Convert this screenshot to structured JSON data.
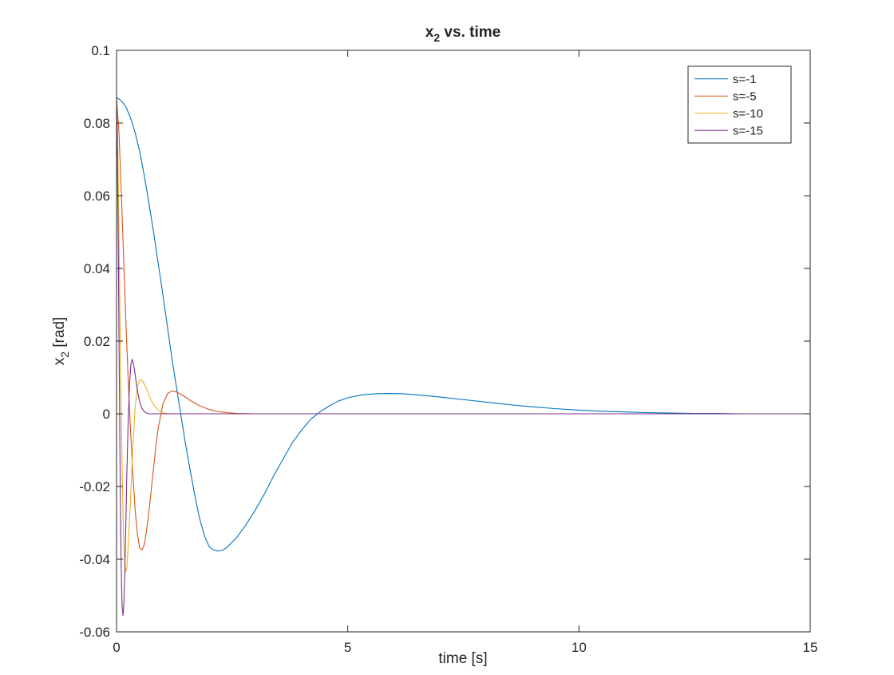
{
  "chart_data": {
    "type": "line",
    "title": "x",
    "title_subscript": "2",
    "title_suffix": " vs. time",
    "xlabel": "time [s]",
    "ylabel": "x",
    "ylabel_subscript": "2",
    "ylabel_suffix": " [rad]",
    "xlim": [
      0,
      15
    ],
    "ylim": [
      -0.06,
      0.1
    ],
    "xticks": [
      0,
      5,
      10,
      15
    ],
    "xtick_labels": [
      "0",
      "5",
      "10",
      "15"
    ],
    "yticks": [
      -0.06,
      -0.04,
      -0.02,
      0,
      0.02,
      0.04,
      0.06,
      0.08,
      0.1
    ],
    "ytick_labels": [
      "-0.06",
      "-0.04",
      "-0.02",
      "0",
      "0.02",
      "0.04",
      "0.06",
      "0.08",
      "0.1"
    ],
    "grid": false,
    "legend_position": "top-right",
    "series": [
      {
        "name": "s=-1",
        "color": "#0072BD",
        "x": [
          0,
          0.1,
          0.2,
          0.3,
          0.4,
          0.5,
          0.6,
          0.7,
          0.8,
          0.9,
          1.0,
          1.1,
          1.2,
          1.3,
          1.4,
          1.5,
          1.6,
          1.7,
          1.8,
          1.9,
          2.0,
          2.1,
          2.2,
          2.3,
          2.4,
          2.6,
          2.8,
          3.0,
          3.2,
          3.4,
          3.6,
          3.8,
          4.0,
          4.2,
          4.4,
          4.6,
          4.8,
          5.0,
          5.3,
          5.6,
          5.9,
          6.2,
          6.5,
          7.0,
          7.5,
          8.0,
          8.5,
          9.0,
          9.5,
          10.0,
          10.5,
          11.0,
          11.5,
          12.0,
          12.5,
          13.0,
          13.5,
          14.0,
          14.5,
          15.0
        ],
        "y": [
          0.087,
          0.0862,
          0.0845,
          0.0815,
          0.0775,
          0.0722,
          0.0655,
          0.058,
          0.05,
          0.0415,
          0.033,
          0.024,
          0.015,
          0.007,
          -0.001,
          -0.009,
          -0.016,
          -0.023,
          -0.029,
          -0.0335,
          -0.0365,
          -0.0375,
          -0.0378,
          -0.0375,
          -0.0366,
          -0.034,
          -0.0305,
          -0.0265,
          -0.022,
          -0.017,
          -0.0125,
          -0.008,
          -0.0045,
          -0.0015,
          0.0005,
          0.0022,
          0.0035,
          0.0044,
          0.0052,
          0.0055,
          0.0056,
          0.0055,
          0.0052,
          0.0046,
          0.0039,
          0.0032,
          0.0025,
          0.0019,
          0.0014,
          0.001,
          0.0007,
          0.0005,
          0.0003,
          0.0002,
          0.0001,
          0.0001,
          0.0,
          0.0,
          0.0,
          0.0
        ]
      },
      {
        "name": "s=-5",
        "color": "#D95319",
        "x": [
          0,
          0.05,
          0.1,
          0.15,
          0.2,
          0.25,
          0.3,
          0.35,
          0.4,
          0.45,
          0.5,
          0.55,
          0.6,
          0.65,
          0.7,
          0.75,
          0.8,
          0.85,
          0.9,
          1.0,
          1.1,
          1.2,
          1.3,
          1.4,
          1.5,
          1.6,
          1.8,
          2.0,
          2.2,
          2.4,
          2.6,
          2.8,
          3.0,
          3.5,
          4.0,
          5.0,
          8.0,
          15.0
        ],
        "y": [
          0.087,
          0.078,
          0.062,
          0.044,
          0.026,
          0.01,
          -0.004,
          -0.016,
          -0.026,
          -0.033,
          -0.037,
          -0.0375,
          -0.036,
          -0.032,
          -0.027,
          -0.021,
          -0.015,
          -0.009,
          -0.004,
          0.0025,
          0.0055,
          0.0063,
          0.006,
          0.0053,
          0.0045,
          0.0036,
          0.0022,
          0.0012,
          0.0006,
          0.0003,
          0.0001,
          5e-05,
          0.0,
          0.0,
          0.0,
          0.0,
          0.0,
          0.0
        ]
      },
      {
        "name": "s=-10",
        "color": "#EDB120",
        "x": [
          0,
          0.025,
          0.05,
          0.075,
          0.1,
          0.125,
          0.15,
          0.175,
          0.2,
          0.225,
          0.25,
          0.3,
          0.35,
          0.4,
          0.45,
          0.5,
          0.55,
          0.6,
          0.65,
          0.7,
          0.75,
          0.8,
          0.9,
          1.0,
          1.1,
          1.2,
          1.4,
          1.6,
          2.0,
          3.0,
          15.0
        ],
        "y": [
          0.087,
          0.075,
          0.052,
          0.026,
          0.002,
          -0.018,
          -0.033,
          -0.041,
          -0.0435,
          -0.042,
          -0.037,
          -0.024,
          -0.01,
          0.0015,
          0.0075,
          0.0093,
          0.0092,
          0.0082,
          0.0068,
          0.0052,
          0.0037,
          0.0025,
          0.001,
          0.0003,
          5e-05,
          0.0,
          0.0,
          0.0,
          0.0,
          0.0,
          0.0
        ]
      },
      {
        "name": "s=-15",
        "color": "#7E2F8E",
        "x": [
          0,
          0.02,
          0.04,
          0.06,
          0.08,
          0.1,
          0.12,
          0.14,
          0.16,
          0.18,
          0.2,
          0.22,
          0.25,
          0.28,
          0.31,
          0.34,
          0.37,
          0.4,
          0.43,
          0.46,
          0.5,
          0.55,
          0.6,
          0.65,
          0.7,
          0.8,
          0.9,
          1.0,
          1.2,
          1.5,
          2.0,
          15.0
        ],
        "y": [
          0.087,
          0.07,
          0.042,
          0.01,
          -0.02,
          -0.042,
          -0.053,
          -0.0555,
          -0.052,
          -0.043,
          -0.031,
          -0.018,
          -0.003,
          0.008,
          0.0135,
          0.015,
          0.0135,
          0.011,
          0.0082,
          0.0058,
          0.0033,
          0.0015,
          0.0006,
          0.0002,
          0.0,
          0.0,
          0.0,
          0.0,
          0.0,
          0.0,
          0.0,
          0.0
        ]
      }
    ]
  }
}
